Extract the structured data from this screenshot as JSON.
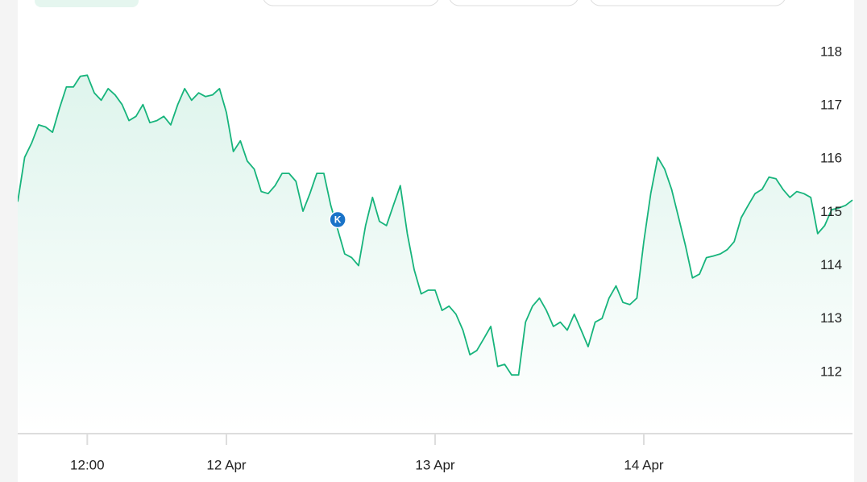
{
  "chart_data": {
    "type": "line",
    "color": "#17b47c",
    "ylim": [
      110.85,
      119
    ],
    "yticks": [
      112,
      113,
      114,
      115,
      116,
      117,
      118
    ],
    "annotations": [
      {
        "text": "K"
      }
    ],
    "categories": [
      null,
      null,
      null,
      null,
      null,
      null,
      null,
      null,
      null,
      null,
      "12:00",
      null,
      null,
      null,
      null,
      null,
      null,
      null,
      null,
      null,
      null,
      null,
      null,
      null,
      null,
      null,
      null,
      null,
      null,
      null,
      "12 Apr",
      null,
      null,
      null,
      null,
      null,
      null,
      null,
      null,
      null,
      null,
      null,
      null,
      null,
      null,
      null,
      null,
      null,
      null,
      null,
      null,
      null,
      null,
      null,
      null,
      null,
      null,
      null,
      null,
      null,
      "13 Apr",
      null,
      null,
      null,
      null,
      null,
      null,
      null,
      null,
      null,
      null,
      null,
      null,
      null,
      null,
      null,
      null,
      null,
      null,
      null,
      null,
      null,
      null,
      null,
      null,
      null,
      null,
      null,
      null,
      null,
      "14 Apr",
      null,
      null,
      null,
      null,
      null,
      null,
      null,
      null,
      null,
      null,
      null,
      null,
      null,
      null,
      null,
      null,
      null,
      null,
      null,
      null,
      null,
      null,
      null,
      null,
      null,
      null,
      null,
      null,
      null,
      null
    ],
    "values": [
      115.2,
      116.03,
      116.3,
      116.64,
      116.6,
      116.5,
      116.95,
      117.35,
      117.35,
      117.55,
      117.57,
      117.24,
      117.1,
      117.32,
      117.2,
      117.02,
      116.72,
      116.8,
      117.02,
      116.68,
      116.72,
      116.8,
      116.64,
      117.02,
      117.32,
      117.1,
      117.24,
      117.17,
      117.2,
      117.32,
      116.87,
      116.14,
      116.34,
      115.96,
      115.81,
      115.39,
      115.35,
      115.5,
      115.73,
      115.73,
      115.58,
      115.02,
      115.35,
      115.73,
      115.73,
      115.13,
      114.68,
      114.22,
      114.15,
      114.0,
      114.75,
      115.28,
      114.83,
      114.75,
      115.13,
      115.5,
      114.6,
      113.92,
      113.47,
      113.54,
      113.54,
      113.16,
      113.24,
      113.09,
      112.79,
      112.33,
      112.41,
      112.63,
      112.86,
      112.11,
      112.15,
      111.95,
      111.95,
      112.94,
      113.24,
      113.39,
      113.16,
      112.86,
      112.94,
      112.79,
      113.09,
      112.79,
      112.48,
      112.94,
      113.01,
      113.39,
      113.62,
      113.31,
      113.27,
      113.39,
      114.45,
      115.35,
      116.03,
      115.81,
      115.43,
      114.9,
      114.37,
      113.77,
      113.84,
      114.15,
      114.18,
      114.22,
      114.3,
      114.45,
      114.9,
      115.13,
      115.35,
      115.43,
      115.66,
      115.63,
      115.43,
      115.28,
      115.39,
      115.35,
      115.28,
      114.6,
      114.75,
      115.05,
      115.08,
      115.13,
      115.23
    ]
  }
}
